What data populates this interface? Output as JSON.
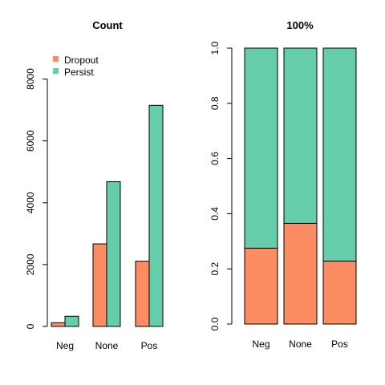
{
  "chart_data": [
    {
      "type": "bar",
      "title": "Count",
      "categories": [
        "Neg",
        "None",
        "Pos"
      ],
      "series": [
        {
          "name": "Dropout",
          "values": [
            120,
            2670,
            2110
          ]
        },
        {
          "name": "Persist",
          "values": [
            330,
            4680,
            7150
          ]
        }
      ],
      "stacked": false,
      "ylim": [
        0,
        9000
      ],
      "yticks": [
        0,
        2000,
        4000,
        6000,
        8000
      ],
      "legend_position": "top-left",
      "grid": false
    },
    {
      "type": "bar",
      "title": "100%",
      "categories": [
        "Neg",
        "None",
        "Pos"
      ],
      "series": [
        {
          "name": "Dropout",
          "values": [
            0.275,
            0.365,
            0.228
          ]
        },
        {
          "name": "Persist",
          "values": [
            0.725,
            0.635,
            0.772
          ]
        }
      ],
      "stacked": true,
      "ylim": [
        0,
        1.0
      ],
      "yticks": [
        "0.0",
        "0.2",
        "0.4",
        "0.6",
        "0.8",
        "1.0"
      ],
      "grid": false
    }
  ],
  "colors": {
    "Dropout": "#FC8D62",
    "Persist": "#66CDAA"
  }
}
